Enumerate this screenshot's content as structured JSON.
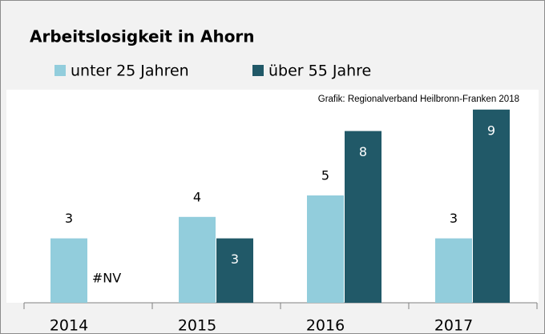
{
  "chart_data": {
    "type": "bar",
    "title": "Arbeitslosigkeit in Ahorn",
    "annotation": "Grafik: Regionalverband Heilbronn-Franken 2018",
    "categories": [
      "2014",
      "2015",
      "2016",
      "2017"
    ],
    "series": [
      {
        "name": "unter 25 Jahren",
        "color": "#92cddc",
        "values": [
          3,
          4,
          5,
          3
        ]
      },
      {
        "name": "über 55 Jahre",
        "color": "#215968",
        "values": [
          null,
          3,
          8,
          9
        ],
        "value_labels": [
          "#NV",
          "3",
          "8",
          "9"
        ]
      }
    ]
  }
}
